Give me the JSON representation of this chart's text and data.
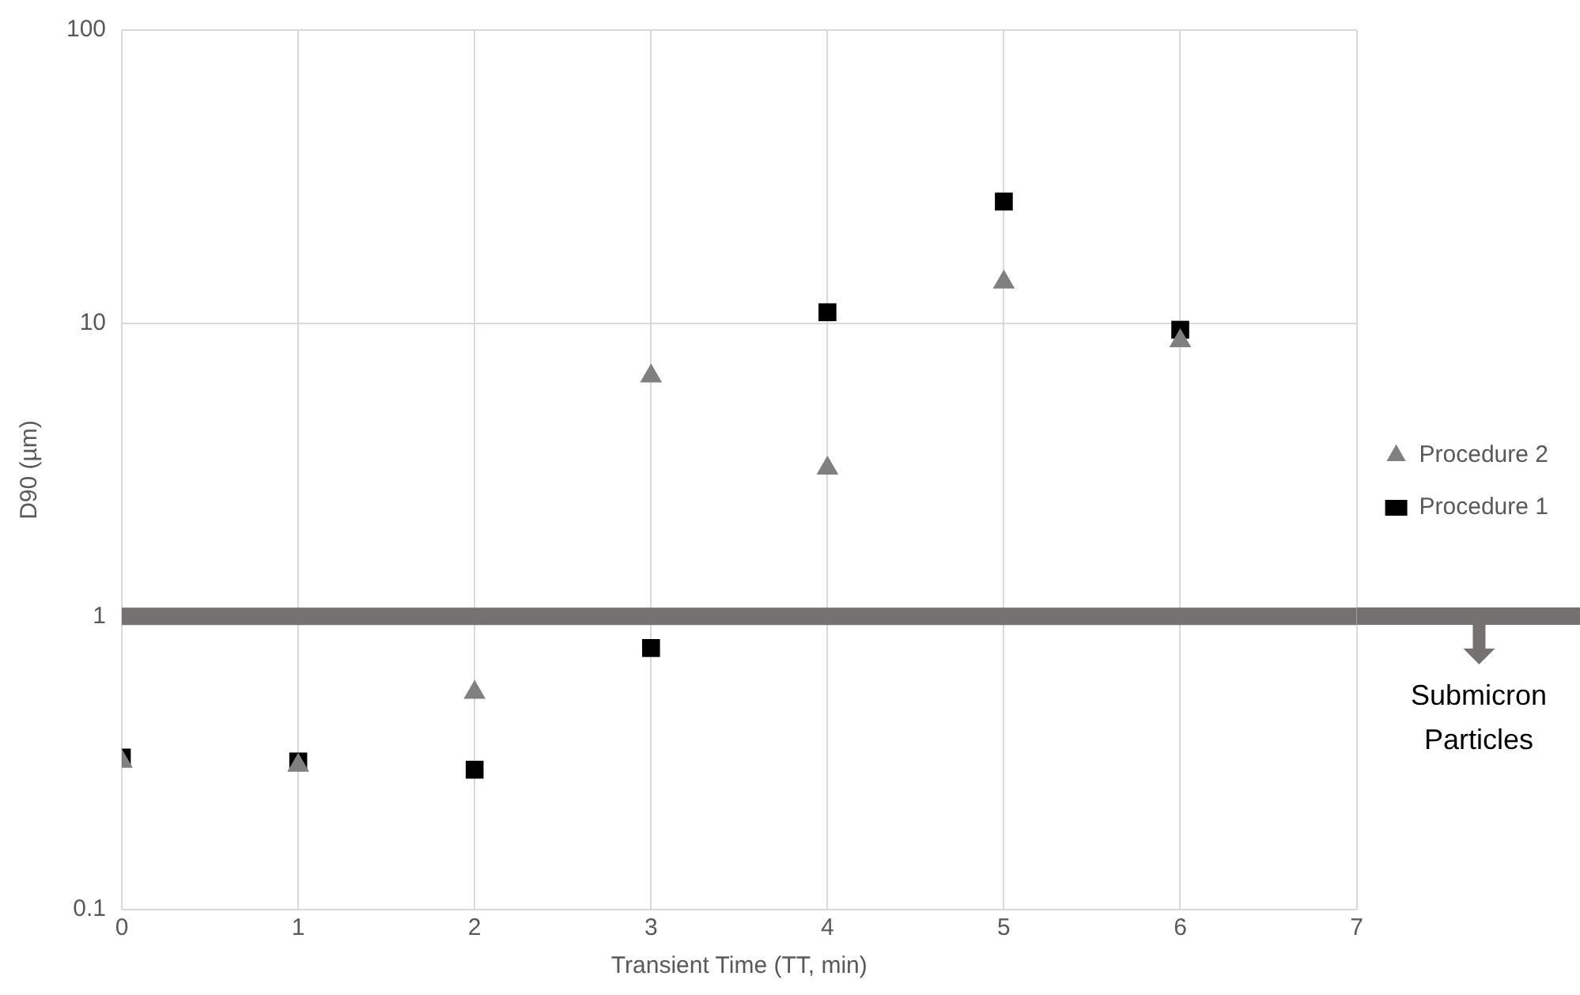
{
  "chart_data": {
    "type": "scatter",
    "xlabel": "Transient Time (TT, min)",
    "ylabel": "D90 (µm)",
    "x": [
      0,
      1,
      2,
      3,
      4,
      5,
      6
    ],
    "series": [
      {
        "name": "Procedure 1",
        "color": "#000000",
        "marker": "square",
        "values": [
          0.33,
          0.32,
          0.3,
          0.78,
          10.9,
          26,
          9.5
        ]
      },
      {
        "name": "Procedure 2",
        "color": "#808080",
        "marker": "triangle",
        "values": [
          0.32,
          0.31,
          0.55,
          6.6,
          3.2,
          13.8,
          8.7
        ]
      }
    ],
    "xlim": [
      0,
      7
    ],
    "xticks": [
      0,
      1,
      2,
      3,
      4,
      5,
      6,
      7
    ],
    "ylim": [
      0.1,
      100
    ],
    "yticks": [
      0.1,
      1,
      10,
      100
    ],
    "log": "y",
    "grid": true,
    "legend": "right",
    "ref_lines": [
      {
        "axis": "y",
        "value": 1,
        "label": "Submicron Particles",
        "color": "#767171"
      }
    ]
  }
}
